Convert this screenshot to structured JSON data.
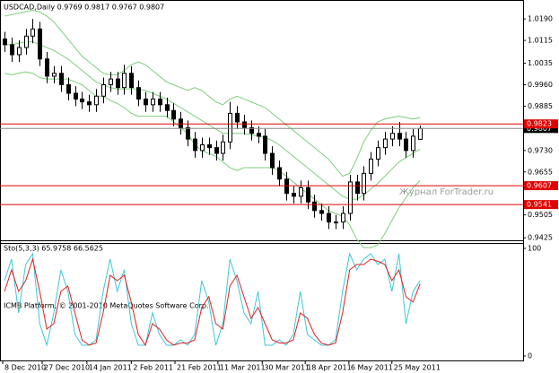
{
  "chart_data": [
    {
      "type": "candlestick",
      "title": "USDCAD,Daily 0.9769 0.9817 0.9767 0.9807",
      "x": [
        0,
        1,
        2,
        3,
        4,
        5,
        6,
        7,
        8,
        9,
        10,
        11,
        12,
        13,
        14,
        15,
        16,
        17,
        18,
        19,
        20,
        21,
        22,
        23,
        24,
        25,
        26,
        27,
        28,
        29,
        30,
        31,
        32,
        33,
        34,
        35,
        36,
        37,
        38,
        39,
        40,
        41,
        42,
        43,
        44,
        45,
        46,
        47,
        48,
        49,
        50,
        51,
        52,
        53,
        54,
        55,
        56,
        57,
        58,
        59
      ],
      "open": [
        1.012,
        1.01,
        1.0065,
        1.009,
        1.013,
        1.0155,
        1.005,
        0.999,
        1.0,
        0.996,
        0.993,
        0.991,
        0.99,
        0.989,
        0.992,
        0.996,
        0.998,
        0.995,
        1.0,
        0.995,
        0.991,
        0.989,
        0.991,
        0.989,
        0.987,
        0.984,
        0.981,
        0.977,
        0.973,
        0.975,
        0.974,
        0.972,
        0.976,
        0.986,
        0.983,
        0.981,
        0.979,
        0.978,
        0.972,
        0.967,
        0.963,
        0.958,
        0.957,
        0.96,
        0.955,
        0.952,
        0.951,
        0.948,
        0.948,
        0.951,
        0.962,
        0.958,
        0.965,
        0.97,
        0.974,
        0.977,
        0.979,
        0.977,
        0.973,
        0.9769
      ],
      "high": [
        1.0145,
        1.0125,
        1.0115,
        1.0155,
        1.019,
        1.018,
        1.0075,
        1.0025,
        1.0025,
        0.9985,
        0.9955,
        0.9935,
        0.9925,
        0.9945,
        0.9985,
        1.0005,
        1.0005,
        1.003,
        1.0025,
        0.9975,
        0.9935,
        0.9935,
        0.9935,
        0.9915,
        0.9895,
        0.9865,
        0.9835,
        0.9795,
        0.9775,
        0.9775,
        0.9765,
        0.9785,
        0.99,
        0.9885,
        0.9855,
        0.9835,
        0.9815,
        0.9805,
        0.9745,
        0.9695,
        0.9655,
        0.9605,
        0.9625,
        0.9625,
        0.9575,
        0.9545,
        0.9535,
        0.9505,
        0.9535,
        0.9645,
        0.9645,
        0.9675,
        0.9725,
        0.9765,
        0.9795,
        0.9815,
        0.983,
        0.9795,
        0.9805,
        0.9817
      ],
      "low": [
        1.0075,
        1.004,
        1.004,
        1.0065,
        1.0105,
        1.0025,
        0.9965,
        0.9965,
        0.9935,
        0.9905,
        0.9885,
        0.9875,
        0.9865,
        0.9865,
        0.9895,
        0.9935,
        0.9925,
        0.9925,
        0.9925,
        0.9885,
        0.9865,
        0.9865,
        0.9865,
        0.9845,
        0.9815,
        0.9785,
        0.9745,
        0.9705,
        0.9705,
        0.9715,
        0.9695,
        0.9695,
        0.9735,
        0.9805,
        0.9785,
        0.9765,
        0.9755,
        0.9695,
        0.9645,
        0.9605,
        0.9555,
        0.9545,
        0.9545,
        0.9525,
        0.9495,
        0.9485,
        0.9455,
        0.9455,
        0.9455,
        0.9485,
        0.9555,
        0.9555,
        0.9625,
        0.9675,
        0.9715,
        0.9745,
        0.9745,
        0.9705,
        0.9705,
        0.9767
      ],
      "close": [
        1.01,
        1.0065,
        1.009,
        1.013,
        1.0155,
        1.005,
        0.999,
        1.0,
        0.996,
        0.993,
        0.991,
        0.99,
        0.989,
        0.992,
        0.996,
        0.998,
        0.995,
        1.0,
        0.995,
        0.991,
        0.989,
        0.991,
        0.989,
        0.987,
        0.984,
        0.981,
        0.977,
        0.973,
        0.975,
        0.974,
        0.972,
        0.976,
        0.986,
        0.983,
        0.981,
        0.979,
        0.978,
        0.972,
        0.967,
        0.963,
        0.958,
        0.957,
        0.96,
        0.955,
        0.952,
        0.951,
        0.948,
        0.948,
        0.951,
        0.962,
        0.958,
        0.965,
        0.97,
        0.974,
        0.977,
        0.979,
        0.977,
        0.973,
        0.978,
        0.9807
      ],
      "up_color": "#ffffff",
      "down_color": "#000000",
      "wick_color": "#000000",
      "overlays": [
        {
          "color": "#7ccf7c",
          "values": [
            1.02,
            1.0205,
            1.021,
            1.0215,
            1.022,
            1.0215,
            1.02,
            1.018,
            1.015,
            1.012,
            1.009,
            1.006,
            1.004,
            1.002,
            1.0,
            0.9995,
            0.9995,
            1.001,
            1.003,
            1.004,
            1.003,
            1.001,
            0.999,
            0.997,
            0.996,
            0.995,
            0.994,
            0.995,
            0.994,
            0.992,
            0.99,
            0.989,
            0.991,
            0.992,
            0.991,
            0.99,
            0.989,
            0.988,
            0.986,
            0.984,
            0.982,
            0.98,
            0.978,
            0.976,
            0.974,
            0.972,
            0.97,
            0.967,
            0.964,
            0.965,
            0.97,
            0.976,
            0.98,
            0.983,
            0.984,
            0.9845,
            0.985,
            0.9845,
            0.984,
            0.9845
          ]
        },
        {
          "color": "#7ccf7c",
          "values": [
            1.01,
            1.01,
            1.0105,
            1.011,
            1.011,
            1.01,
            1.009,
            1.008,
            1.0065,
            1.005,
            1.003,
            1.001,
            0.999,
            0.997,
            0.996,
            0.995,
            0.9945,
            0.9945,
            0.9945,
            0.9945,
            0.994,
            0.993,
            0.992,
            0.991,
            0.9895,
            0.988,
            0.9865,
            0.985,
            0.9835,
            0.982,
            0.9805,
            0.979,
            0.979,
            0.979,
            0.979,
            0.9785,
            0.978,
            0.9775,
            0.9765,
            0.975,
            0.973,
            0.971,
            0.969,
            0.967,
            0.965,
            0.963,
            0.961,
            0.959,
            0.957,
            0.956,
            0.956,
            0.9575,
            0.9595,
            0.9615,
            0.964,
            0.9665,
            0.969,
            0.9705,
            0.972,
            0.9735
          ]
        },
        {
          "color": "#7ccf7c",
          "values": [
            1.0,
            0.9995,
            1.0,
            1.0005,
            1.0,
            0.9985,
            0.998,
            0.998,
            0.998,
            0.998,
            0.997,
            0.996,
            0.994,
            0.992,
            0.992,
            0.9905,
            0.9895,
            0.988,
            0.986,
            0.985,
            0.985,
            0.985,
            0.985,
            0.985,
            0.983,
            0.981,
            0.979,
            0.975,
            0.973,
            0.972,
            0.971,
            0.969,
            0.967,
            0.966,
            0.967,
            0.967,
            0.967,
            0.967,
            0.967,
            0.966,
            0.964,
            0.962,
            0.96,
            0.958,
            0.956,
            0.954,
            0.952,
            0.951,
            0.95,
            0.947,
            0.942,
            0.939,
            0.939,
            0.94,
            0.944,
            0.9485,
            0.953,
            0.9565,
            0.96,
            0.9625
          ]
        }
      ],
      "levels": [
        0.9823,
        0.9607,
        0.9541
      ],
      "level_color": "#e00000",
      "current_price": 0.9807,
      "current_color": "#888888",
      "xlim": [
        -0.64,
        73.63
      ],
      "ylim": [
        0.9416,
        1.025
      ],
      "yticks": [
        {
          "value": 1.019,
          "label": "1.0190"
        },
        1.0115,
        1.0035,
        {
          "value": 0.996,
          "label": "0.9960"
        },
        0.9885,
        {
          "value": 0.973,
          "label": "0.9730"
        },
        0.9655,
        0.9505,
        0.9425
      ]
    },
    {
      "type": "line",
      "title": "Sto(5,3,3) 65.9758 66.5625",
      "x": [
        0,
        1,
        2,
        3,
        4,
        5,
        6,
        7,
        8,
        9,
        10,
        11,
        12,
        13,
        14,
        15,
        16,
        17,
        18,
        19,
        20,
        21,
        22,
        23,
        24,
        25,
        26,
        27,
        28,
        29,
        30,
        31,
        32,
        33,
        34,
        35,
        36,
        37,
        38,
        39,
        40,
        41,
        42,
        43,
        44,
        45,
        46,
        47,
        48,
        49,
        50,
        51,
        52,
        53,
        54,
        55,
        56,
        57,
        58,
        59
      ],
      "series": [
        {
          "color": "#3cc8d8",
          "values": [
            70,
            90,
            40,
            85,
            95,
            30,
            10,
            40,
            80,
            60,
            20,
            10,
            10,
            15,
            60,
            90,
            60,
            80,
            30,
            10,
            10,
            40,
            20,
            10,
            10,
            15,
            10,
            20,
            70,
            50,
            10,
            30,
            90,
            70,
            40,
            30,
            60,
            10,
            10,
            15,
            10,
            20,
            60,
            20,
            15,
            10,
            10,
            15,
            60,
            95,
            80,
            90,
            95,
            85,
            90,
            60,
            95,
            30,
            60,
            70
          ]
        },
        {
          "color": "#e02020",
          "values": [
            60,
            80,
            60,
            70,
            90,
            60,
            25,
            30,
            60,
            65,
            40,
            15,
            10,
            12,
            40,
            75,
            70,
            75,
            50,
            20,
            10,
            30,
            25,
            15,
            10,
            12,
            12,
            15,
            45,
            55,
            30,
            25,
            65,
            75,
            55,
            35,
            45,
            30,
            15,
            12,
            12,
            15,
            40,
            35,
            20,
            12,
            10,
            12,
            40,
            80,
            85,
            85,
            90,
            88,
            85,
            70,
            80,
            55,
            50,
            67
          ]
        }
      ],
      "xlim": [
        -0.64,
        73.63
      ],
      "ylim": [
        0,
        100
      ],
      "yticks": [
        100,
        0
      ],
      "xticks": [
        {
          "value": -0.25,
          "label": "8 Dec 2010"
        },
        {
          "value": 5.35,
          "label": "27 Dec 2010"
        },
        {
          "value": 11.7,
          "label": "14 Jan 2011"
        },
        {
          "value": 18,
          "label": "2 Feb 2011"
        },
        {
          "value": 24.2,
          "label": "21 Feb 2011"
        },
        {
          "value": 30.3,
          "label": "11 Mar 2011"
        },
        {
          "value": 36.6,
          "label": "30 Mar 2011"
        },
        {
          "value": 42.7,
          "label": "18 Apr 2011"
        },
        {
          "value": 48.9,
          "label": "6 May 2011"
        },
        {
          "value": 55,
          "label": "25 May 2011"
        }
      ]
    }
  ],
  "watermark": "Журнал ForTrader.ru",
  "copyright": "ICMB Platform, © 2001-2010 MetaQuotes Software Corp."
}
